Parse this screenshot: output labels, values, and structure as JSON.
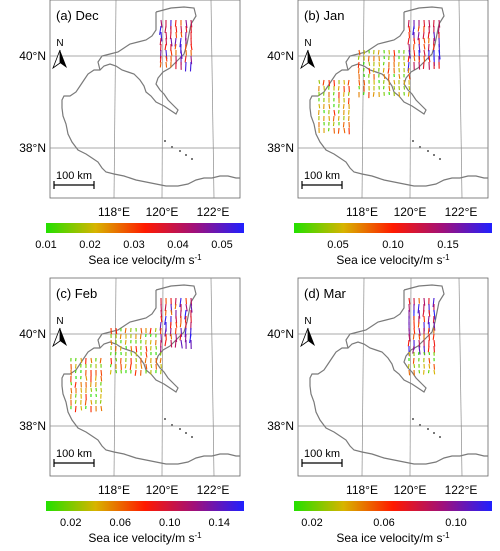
{
  "panels": [
    {
      "id": "a",
      "label": "(a) Dec",
      "lat_labels": [
        "40°N",
        "38°N"
      ],
      "lon_labels": [
        "118°E",
        "120°E",
        "122°E"
      ],
      "north_label": "N",
      "scale_label": "100 km",
      "colorbar": {
        "ticks": [
          "0.01",
          "0.02",
          "0.03",
          "0.04",
          "0.05"
        ],
        "min": 0.01,
        "max": 0.055,
        "title": "Sea ice velocity/m s",
        "title_sup": "-1"
      },
      "ice_extent": "north"
    },
    {
      "id": "b",
      "label": "(b) Jan",
      "lat_labels": [
        "40°N",
        "38°N"
      ],
      "lon_labels": [
        "118°E",
        "120°E",
        "122°E"
      ],
      "north_label": "N",
      "scale_label": "100 km",
      "colorbar": {
        "ticks": [
          "0.05",
          "0.10",
          "0.15"
        ],
        "min": 0.01,
        "max": 0.19,
        "title": "Sea ice velocity/m s",
        "title_sup": "-1"
      },
      "ice_extent": "wide"
    },
    {
      "id": "c",
      "label": "(c) Feb",
      "lat_labels": [
        "40°N",
        "38°N"
      ],
      "lon_labels": [
        "118°E",
        "120°E",
        "122°E"
      ],
      "north_label": "N",
      "scale_label": "100 km",
      "colorbar": {
        "ticks": [
          "0.02",
          "0.06",
          "0.10",
          "0.14"
        ],
        "min": 0.0,
        "max": 0.16,
        "title": "Sea ice velocity/m s",
        "title_sup": "-1"
      },
      "ice_extent": "wide"
    },
    {
      "id": "d",
      "label": "(d) Mar",
      "lat_labels": [
        "40°N",
        "38°N"
      ],
      "lon_labels": [
        "118°E",
        "120°E",
        "122°E"
      ],
      "north_label": "N",
      "scale_label": "100 km",
      "colorbar": {
        "ticks": [
          "0.02",
          "0.06",
          "0.10"
        ],
        "min": 0.01,
        "max": 0.12,
        "title": "Sea ice velocity/m s",
        "title_sup": "-1"
      },
      "ice_extent": "east"
    }
  ],
  "colors": {
    "coast": "#7a7a7a",
    "grid": "#8c8c8c",
    "colormap": [
      "#22e000",
      "#d7b400",
      "#ff1a00",
      "#a0107a",
      "#2020ff"
    ]
  }
}
